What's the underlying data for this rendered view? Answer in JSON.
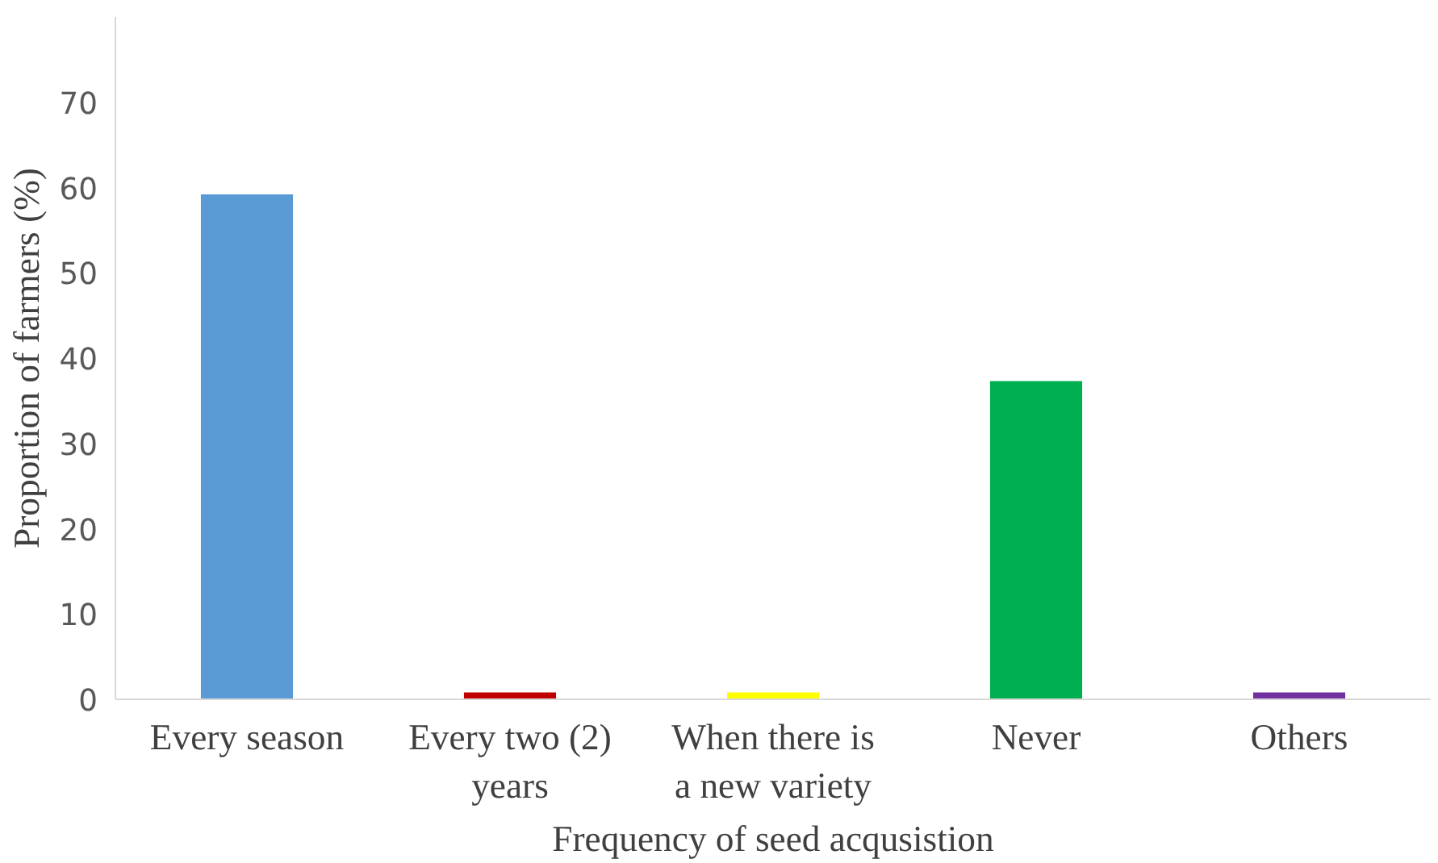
{
  "chart_data": {
    "type": "bar",
    "xlabel": "Frequency of seed acqusistion",
    "ylabel": "Proportion of farmers (%)",
    "categories": [
      "Every season",
      "Every two (2)\nyears",
      "When there is\na new variety",
      "Never",
      "Others"
    ],
    "values": [
      59.2,
      0.8,
      0.8,
      37.3,
      0.8
    ],
    "colors": [
      "#5b9bd5",
      "#c00000",
      "#ffff00",
      "#00b050",
      "#7030a0"
    ],
    "ylim": [
      0,
      80
    ],
    "yticks": [
      0,
      10,
      20,
      30,
      40,
      50,
      60,
      70
    ],
    "grid": false
  }
}
